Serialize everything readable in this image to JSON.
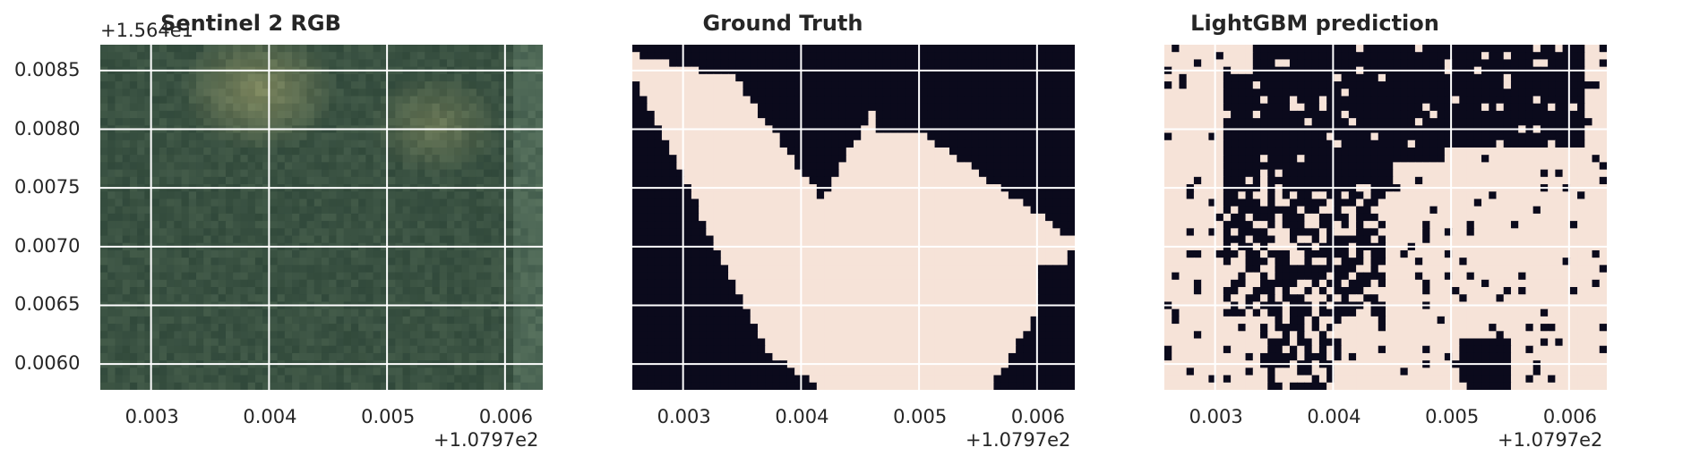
{
  "panels": [
    {
      "title": "Sentinel 2 RGB",
      "kind": "rgb",
      "show_yticks": true
    },
    {
      "title": "Ground Truth",
      "kind": "mask_gt",
      "show_yticks": false
    },
    {
      "title": "LightGBM prediction",
      "kind": "mask_pred",
      "show_yticks": false
    }
  ],
  "axes": {
    "x_offset": "+1.0797e2",
    "y_offset": "+1.564e1",
    "x_ticks": [
      "0.003",
      "0.004",
      "0.005",
      "0.006"
    ],
    "y_ticks": [
      "0.0085",
      "0.0080",
      "0.0075",
      "0.0070",
      "0.0065",
      "0.0060"
    ]
  },
  "colors": {
    "mask_dark": "#0b0a1c",
    "mask_light": "#f6e3d8",
    "grid": "#ffffff",
    "rgb_base": "#3f5a45"
  },
  "chart_data": [
    {
      "type": "heatmap",
      "title": "Sentinel 2 RGB",
      "xlim": [
        0.00257,
        0.00632
      ],
      "ylim": [
        0.00578,
        0.00872
      ],
      "grid": true
    },
    {
      "type": "heatmap",
      "title": "Ground Truth",
      "xlim": [
        0.00257,
        0.00632
      ],
      "ylim": [
        0.00578,
        0.00872
      ],
      "grid": true
    },
    {
      "type": "heatmap",
      "title": "LightGBM prediction",
      "xlim": [
        0.00257,
        0.00632
      ],
      "ylim": [
        0.00578,
        0.00872
      ],
      "grid": true
    }
  ]
}
